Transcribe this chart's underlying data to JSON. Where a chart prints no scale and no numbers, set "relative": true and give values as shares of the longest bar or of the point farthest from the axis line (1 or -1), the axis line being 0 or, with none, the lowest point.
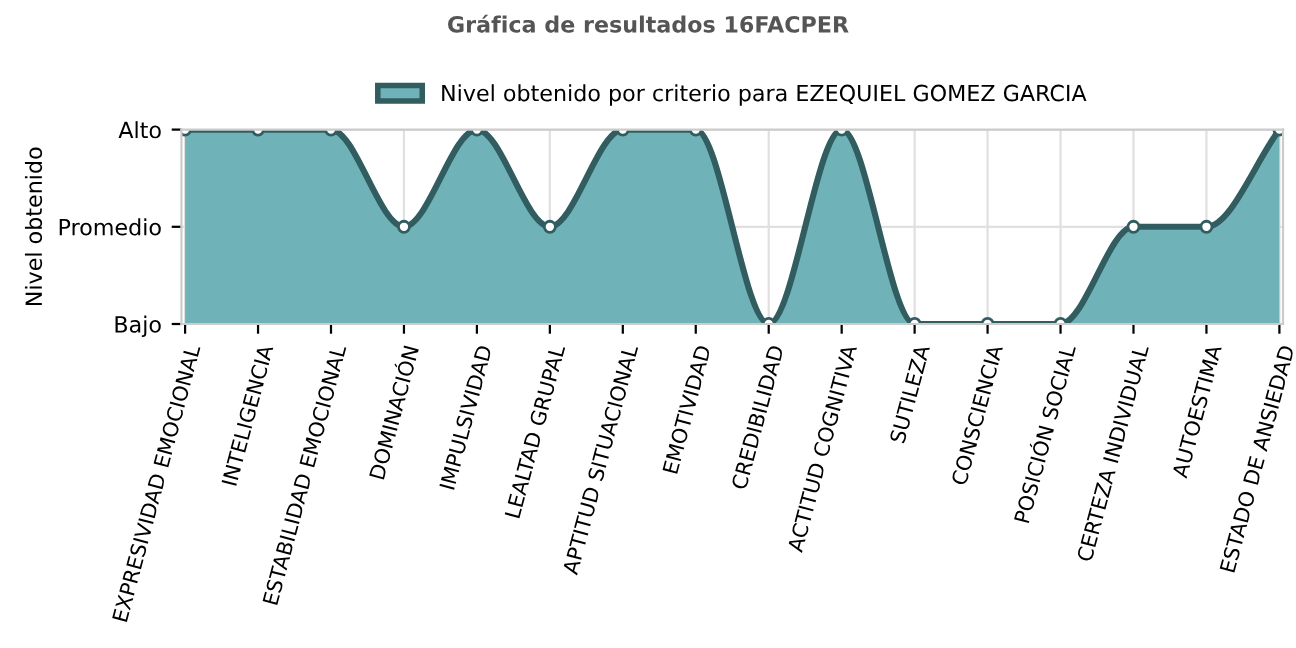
{
  "chart_data": {
    "type": "area",
    "title": "Gráfica de resultados 16FACPER",
    "ylabel": "Nivel obtenido",
    "categories": [
      "EXPRESIVIDAD EMOCIONAL",
      "INTELIGENCIA",
      "ESTABILIDAD EMOCIONAL",
      "DOMINACIÓN",
      "IMPULSIVIDAD",
      "LEALTAD GRUPAL",
      "APTITUD SITUACIONAL",
      "EMOTIVIDAD",
      "CREDIBILIDAD",
      "ACTITUD COGNITIVA",
      "SUTILEZA",
      "CONSCIENCIA",
      "POSICIÓN SOCIAL",
      "CERTEZA INDIVIDUAL",
      "AUTOESTIMA",
      "ESTADO DE ANSIEDAD"
    ],
    "series": [
      {
        "name": "Nivel obtenido por criterio para EZEQUIEL GOMEZ GARCIA",
        "color": "#6fb3b8",
        "values": [
          1,
          1,
          1,
          0.5,
          1,
          0.5,
          1,
          1,
          0,
          1,
          0,
          0,
          0,
          0.5,
          0.5,
          1
        ]
      }
    ],
    "relative": true,
    "y_categories": [
      "Alto",
      "Promedio",
      "Bajo"
    ],
    "grid": true,
    "legend": "top",
    "marker": "circle",
    "line_style": "solid"
  }
}
